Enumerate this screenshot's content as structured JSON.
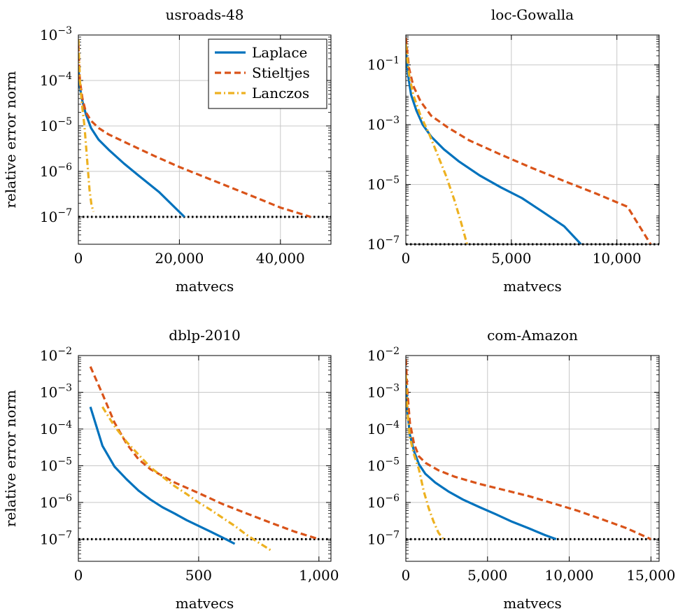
{
  "chart_data": [
    {
      "type": "line",
      "title": "usroads-48",
      "xlabel": "matvecs",
      "ylabel": "relative error norm",
      "xscale": "linear",
      "yscale": "log",
      "xlim": [
        0,
        50000
      ],
      "ylim": [
        2.5e-08,
        0.001
      ],
      "xticks": [
        0,
        20000,
        40000
      ],
      "xtick_labels": [
        "0",
        "20,000",
        "40,000"
      ],
      "yticks": [
        1e-07,
        1e-06,
        1e-05,
        0.0001,
        0.001
      ],
      "ytick_labels": [
        "10^-7",
        "10^-6",
        "10^-5",
        "10^-4",
        "10^-3"
      ],
      "grid": true,
      "legend": "top-right",
      "tolerance": 1e-07,
      "series": [
        {
          "name": "Laplace",
          "color": "#0072bd",
          "style": "solid",
          "x": [
            0,
            300,
            800,
            1500,
            2500,
            4000,
            6000,
            9000,
            12000,
            16000,
            21000
          ],
          "y": [
            0.0002,
            7e-05,
            3.5e-05,
            1.8e-05,
            9e-06,
            5e-06,
            3e-06,
            1.5e-06,
            8e-07,
            3.5e-07,
            1e-07
          ]
        },
        {
          "name": "Stieltjes",
          "color": "#d95319",
          "style": "dashed",
          "x": [
            0,
            300,
            800,
            1500,
            2500,
            4000,
            6000,
            10000,
            15000,
            20000,
            25000,
            30000,
            35000,
            40000,
            46000
          ],
          "y": [
            0.0006,
            0.0001,
            4e-05,
            2e-05,
            1.3e-05,
            9e-06,
            6.5e-06,
            4e-06,
            2.2e-06,
            1.25e-06,
            7.5e-07,
            4.5e-07,
            2.7e-07,
            1.6e-07,
            1e-07
          ]
        },
        {
          "name": "Lanczos",
          "color": "#edb120",
          "style": "dashdot",
          "x": [
            0,
            300,
            700,
            1200,
            1700,
            2200,
            2600,
            3000
          ],
          "y": [
            0.0008,
            0.0001,
            3e-05,
            1e-05,
            2e-06,
            4e-07,
            1.8e-07,
            1.3e-07
          ]
        }
      ]
    },
    {
      "type": "line",
      "title": "loc-Gowalla",
      "xlabel": "matvecs",
      "ylabel": "",
      "xscale": "linear",
      "yscale": "log",
      "xlim": [
        0,
        12000
      ],
      "ylim": [
        1e-07,
        1
      ],
      "xticks": [
        0,
        5000,
        10000
      ],
      "xtick_labels": [
        "0",
        "5,000",
        "10,000"
      ],
      "yticks": [
        1e-07,
        1e-05,
        0.001,
        0.1
      ],
      "ytick_labels": [
        "10^-7",
        "10^-5",
        "10^-3",
        "10^-1"
      ],
      "grid": true,
      "tolerance": 1e-07,
      "series": [
        {
          "name": "Laplace",
          "color": "#0072bd",
          "style": "solid",
          "x": [
            0,
            100,
            250,
            500,
            800,
            1200,
            1800,
            2500,
            3500,
            4500,
            5500,
            6500,
            7500,
            8300
          ],
          "y": [
            0.3,
            0.05,
            0.01,
            0.003,
            0.001,
            0.0004,
            0.00015,
            6e-05,
            2e-05,
            8e-06,
            3.5e-06,
            1.2e-06,
            4e-07,
            1e-07
          ]
        },
        {
          "name": "Stieltjes",
          "color": "#d95319",
          "style": "dashed",
          "x": [
            0,
            150,
            350,
            700,
            1200,
            2000,
            3000,
            4500,
            6000,
            7500,
            9000,
            10500,
            11600
          ],
          "y": [
            0.8,
            0.08,
            0.02,
            0.006,
            0.002,
            0.0008,
            0.0003,
            0.0001,
            3.5e-05,
            1.3e-05,
            5e-06,
            1.8e-06,
            1e-07
          ]
        },
        {
          "name": "Lanczos",
          "color": "#edb120",
          "style": "dashdot",
          "x": [
            0,
            150,
            350,
            700,
            1100,
            1500,
            1900,
            2300,
            2600,
            2900
          ],
          "y": [
            0.5,
            0.05,
            0.01,
            0.002,
            0.0005,
            0.0001,
            2e-05,
            3e-06,
            6e-07,
            1e-07
          ]
        }
      ]
    },
    {
      "type": "line",
      "title": "dblp-2010",
      "xlabel": "matvecs",
      "ylabel": "relative error norm",
      "xscale": "linear",
      "yscale": "log",
      "xlim": [
        0,
        1050
      ],
      "ylim": [
        2.5e-08,
        0.01
      ],
      "xticks": [
        0,
        500,
        1000
      ],
      "xtick_labels": [
        "0",
        "500",
        "1,000"
      ],
      "yticks": [
        1e-07,
        1e-06,
        1e-05,
        0.0001,
        0.001,
        0.01
      ],
      "ytick_labels": [
        "10^-7",
        "10^-6",
        "10^-5",
        "10^-4",
        "10^-3",
        "10^-2"
      ],
      "grid": true,
      "tolerance": 1e-07,
      "series": [
        {
          "name": "Laplace",
          "color": "#0072bd",
          "style": "solid",
          "x": [
            50,
            100,
            150,
            200,
            250,
            300,
            350,
            400,
            450,
            500,
            550,
            600,
            650
          ],
          "y": [
            0.0004,
            3.5e-05,
            9.5e-06,
            4.3e-06,
            2.1e-06,
            1.2e-06,
            7.4e-07,
            5e-07,
            3.3e-07,
            2.3e-07,
            1.6e-07,
            1.1e-07,
            7.5e-08
          ]
        },
        {
          "name": "Stieltjes",
          "color": "#d95319",
          "style": "dashed",
          "x": [
            50,
            100,
            150,
            200,
            250,
            300,
            400,
            500,
            600,
            700,
            800,
            900,
            1000
          ],
          "y": [
            0.005,
            0.0009,
            0.00015,
            4e-05,
            1.5e-05,
            8e-06,
            3.5e-06,
            1.8e-06,
            9e-07,
            5e-07,
            2.8e-07,
            1.6e-07,
            1e-07
          ]
        },
        {
          "name": "Lanczos",
          "color": "#edb120",
          "style": "dashdot",
          "x": [
            100,
            150,
            200,
            250,
            300,
            350,
            400,
            450,
            500,
            550,
            600,
            650,
            700,
            750,
            800
          ],
          "y": [
            0.0004,
            0.00012,
            4.5e-05,
            2e-05,
            9e-06,
            5e-06,
            2.8e-06,
            1.7e-06,
            1e-06,
            6.3e-07,
            3.8e-07,
            2.3e-07,
            1.3e-07,
            8e-08,
            5e-08
          ]
        }
      ]
    },
    {
      "type": "line",
      "title": "com-Amazon",
      "xlabel": "matvecs",
      "ylabel": "",
      "xscale": "linear",
      "yscale": "log",
      "xlim": [
        0,
        15500
      ],
      "ylim": [
        2.5e-08,
        0.01
      ],
      "xticks": [
        0,
        5000,
        10000,
        15000
      ],
      "xtick_labels": [
        "0",
        "5,000",
        "10,000",
        "15,000"
      ],
      "yticks": [
        1e-07,
        1e-06,
        1e-05,
        0.0001,
        0.001,
        0.01
      ],
      "ytick_labels": [
        "10^-7",
        "10^-6",
        "10^-5",
        "10^-4",
        "10^-3",
        "10^-2"
      ],
      "grid": true,
      "tolerance": 1e-07,
      "series": [
        {
          "name": "Laplace",
          "color": "#0072bd",
          "style": "solid",
          "x": [
            0,
            100,
            250,
            500,
            800,
            1200,
            1800,
            2600,
            3500,
            4500,
            5500,
            6500,
            7500,
            8500,
            9200
          ],
          "y": [
            0.002,
            0.0003,
            7e-05,
            2.5e-05,
            1.1e-05,
            6e-06,
            3.5e-06,
            2e-06,
            1.2e-06,
            7.5e-07,
            4.8e-07,
            3e-07,
            2e-07,
            1.3e-07,
            1e-07
          ]
        },
        {
          "name": "Stieltjes",
          "color": "#d95319",
          "style": "dashed",
          "x": [
            0,
            100,
            250,
            500,
            800,
            1200,
            2000,
            3000,
            4500,
            6000,
            7500,
            9000,
            10500,
            12000,
            13500,
            15000
          ],
          "y": [
            0.008,
            0.001,
            0.00015,
            4e-05,
            1.8e-05,
            1.2e-05,
            7.5e-06,
            5e-06,
            3.2e-06,
            2.2e-06,
            1.5e-06,
            9.5e-07,
            6e-07,
            3.5e-07,
            2e-07,
            1e-07
          ]
        },
        {
          "name": "Lanczos",
          "color": "#edb120",
          "style": "dashdot",
          "x": [
            0,
            100,
            250,
            500,
            800,
            1100,
            1400,
            1700,
            2000,
            2300
          ],
          "y": [
            0.003,
            0.0003,
            6e-05,
            2e-05,
            8e-06,
            2e-06,
            7e-07,
            3e-07,
            1.5e-07,
            1e-07
          ]
        }
      ]
    }
  ]
}
